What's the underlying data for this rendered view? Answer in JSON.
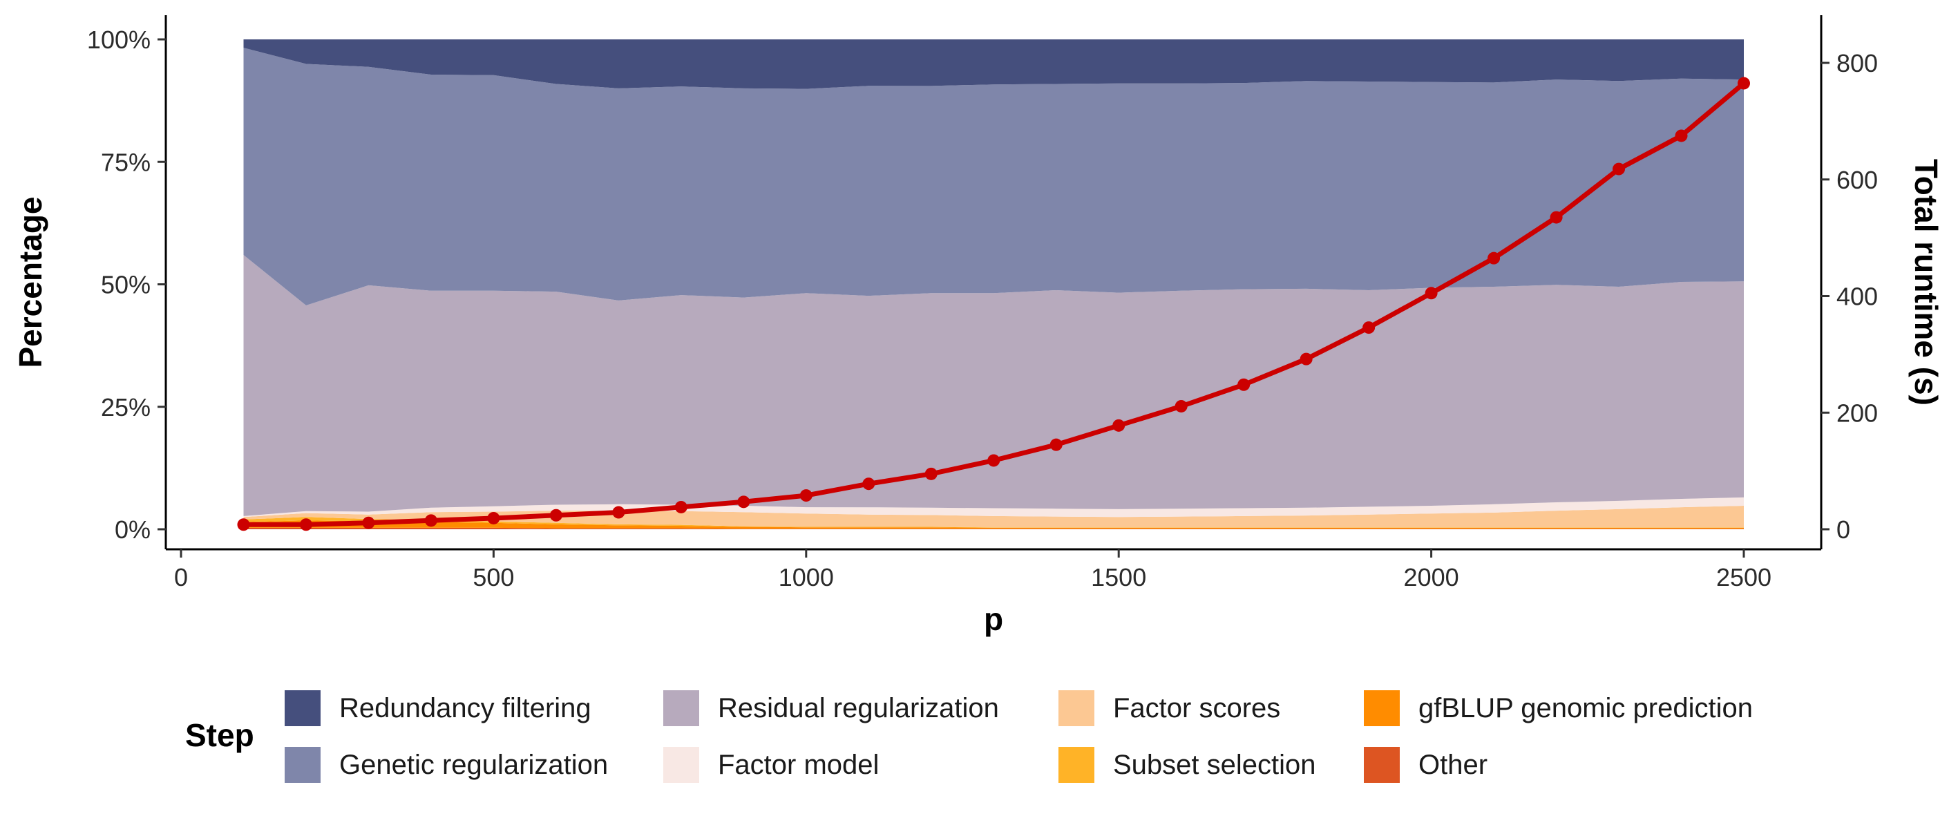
{
  "chart_data": {
    "type": "area",
    "stacking": "percent",
    "xlabel": "p",
    "ylabel": "Percentage",
    "y2label": "Total runtime (s)",
    "xlim": [
      0,
      2620
    ],
    "ylim": [
      0,
      100
    ],
    "y2lim": [
      0,
      840
    ],
    "x_ticks": [
      0,
      500,
      1000,
      1500,
      2000,
      2500
    ],
    "x_tick_labels": [
      "0",
      "500",
      "1000",
      "1500",
      "2000",
      "2500"
    ],
    "y_ticks": [
      0,
      25,
      50,
      75,
      100
    ],
    "y_tick_labels": [
      "0%",
      "25%",
      "50%",
      "75%",
      "100%"
    ],
    "y2_ticks": [
      0,
      200,
      400,
      600,
      800
    ],
    "y2_tick_labels": [
      "0",
      "200",
      "400",
      "600",
      "800"
    ],
    "x": [
      100,
      200,
      300,
      400,
      500,
      600,
      700,
      800,
      900,
      1000,
      1100,
      1200,
      1300,
      1400,
      1500,
      1600,
      1700,
      1800,
      1900,
      2000,
      2100,
      2200,
      2300,
      2400,
      2500
    ],
    "stack_order_bottom_to_top": [
      "Other",
      "gfBLUP genomic prediction",
      "Subset selection",
      "Factor scores",
      "Factor model",
      "Residual regularization",
      "Genetic regularization",
      "Redundancy filtering"
    ],
    "series": [
      {
        "name": "Other",
        "color": "#dd5522",
        "values": [
          0.3,
          0.3,
          0.3,
          0.3,
          0.3,
          0.2,
          0.2,
          0.2,
          0.1,
          0.1,
          0.1,
          0.1,
          0.1,
          0.1,
          0.1,
          0.1,
          0.1,
          0.1,
          0.1,
          0.1,
          0.1,
          0.1,
          0.1,
          0.1,
          0.1
        ]
      },
      {
        "name": "gfBLUP genomic prediction",
        "color": "#ff8c00",
        "values": [
          1.2,
          1.5,
          1.3,
          1.2,
          1.0,
          0.8,
          0.6,
          0.5,
          0.4,
          0.3,
          0.3,
          0.3,
          0.2,
          0.2,
          0.2,
          0.2,
          0.2,
          0.2,
          0.2,
          0.2,
          0.2,
          0.2,
          0.2,
          0.2,
          0.2
        ]
      },
      {
        "name": "Subset selection",
        "color": "#ffb327",
        "values": [
          0.5,
          0.7,
          0.5,
          0.4,
          0.3,
          0.3,
          0.2,
          0.2,
          0.1,
          0.1,
          0.1,
          0.1,
          0.1,
          0.1,
          0.1,
          0.1,
          0.1,
          0.1,
          0.1,
          0.1,
          0.1,
          0.1,
          0.1,
          0.1,
          0.1
        ]
      },
      {
        "name": "Factor scores",
        "color": "#fcc893",
        "values": [
          0.5,
          0.8,
          0.9,
          1.6,
          2.0,
          2.5,
          2.8,
          2.8,
          2.9,
          2.7,
          2.5,
          2.4,
          2.3,
          2.2,
          2.1,
          2.2,
          2.3,
          2.4,
          2.6,
          2.8,
          3.0,
          3.4,
          3.7,
          4.1,
          4.4
        ]
      },
      {
        "name": "Factor model",
        "color": "#f8e8e4",
        "values": [
          0.2,
          0.4,
          0.6,
          0.9,
          1.1,
          1.2,
          1.3,
          1.3,
          1.3,
          1.3,
          1.5,
          1.5,
          1.6,
          1.6,
          1.6,
          1.6,
          1.6,
          1.6,
          1.6,
          1.6,
          1.7,
          1.7,
          1.7,
          1.7,
          1.7
        ]
      },
      {
        "name": "Residual regularization",
        "color": "#b7aabd",
        "values": [
          53.3,
          42.0,
          46.2,
          44.3,
          44.0,
          43.5,
          41.6,
          42.8,
          42.5,
          43.7,
          43.3,
          43.8,
          43.9,
          44.6,
          44.2,
          44.5,
          44.7,
          44.7,
          44.2,
          44.5,
          44.4,
          44.4,
          43.7,
          44.3,
          44.1
        ]
      },
      {
        "name": "Genetic regularization",
        "color": "#7f86aa",
        "values": [
          42.3,
          49.3,
          44.6,
          44.1,
          44.0,
          42.4,
          43.3,
          42.6,
          42.7,
          41.7,
          43.0,
          42.3,
          42.6,
          42.1,
          42.7,
          42.3,
          42.1,
          42.4,
          42.6,
          42.0,
          41.7,
          41.9,
          42.0,
          41.5,
          41.2
        ]
      },
      {
        "name": "Redundancy filtering",
        "color": "#454f7d",
        "values": [
          1.7,
          5.0,
          5.6,
          7.2,
          7.3,
          9.1,
          10.0,
          9.6,
          10.0,
          10.1,
          9.5,
          9.5,
          9.2,
          9.1,
          9.0,
          9.0,
          8.9,
          8.5,
          8.6,
          8.7,
          8.8,
          8.2,
          8.5,
          8.0,
          8.2
        ]
      }
    ],
    "line_series": {
      "name": "Total runtime (s)",
      "axis": "right",
      "color": "#cc0000",
      "values": [
        8,
        8,
        11,
        15,
        19,
        24,
        29,
        38,
        47,
        58,
        78,
        95,
        118,
        145,
        178,
        211,
        248,
        292,
        346,
        405,
        465,
        535,
        618,
        675,
        765
      ]
    },
    "legend": {
      "title": "Step",
      "position": "bottom",
      "items": [
        {
          "label": "Redundancy filtering",
          "color": "#454f7d"
        },
        {
          "label": "Genetic regularization",
          "color": "#7f86aa"
        },
        {
          "label": "Residual regularization",
          "color": "#b7aabd"
        },
        {
          "label": "Factor model",
          "color": "#f8e8e4"
        },
        {
          "label": "Factor scores",
          "color": "#fcc893"
        },
        {
          "label": "Subset selection",
          "color": "#ffb327"
        },
        {
          "label": "gfBLUP genomic prediction",
          "color": "#ff8c00"
        },
        {
          "label": "Other",
          "color": "#dd5522"
        }
      ]
    }
  }
}
